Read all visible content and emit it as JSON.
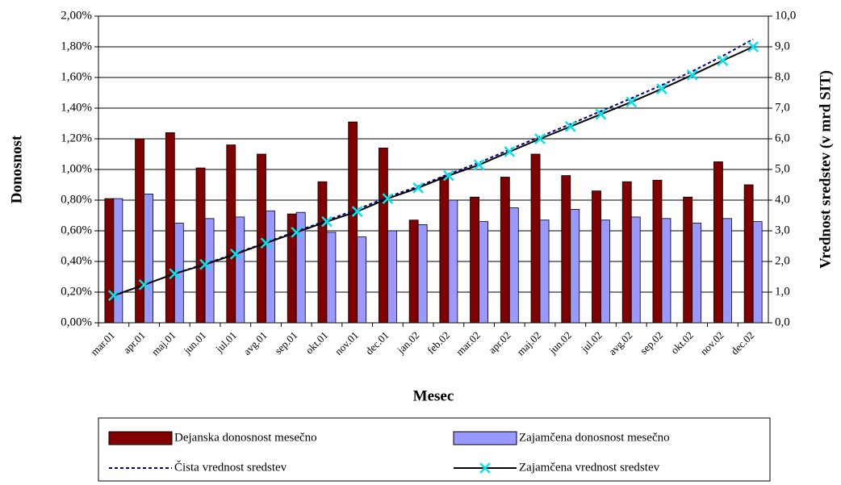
{
  "chart_data": {
    "type": "bar_line",
    "xlabel": "Mesec",
    "ylabel": "Donosnost",
    "y2label": "Vrednost sredstev (v mrd SIT)",
    "categories": [
      "mar.01",
      "apr.01",
      "maj.01",
      "jun.01",
      "jul.01",
      "avg.01",
      "sep.01",
      "okt.01",
      "nov.01",
      "dec.01",
      "jan.02",
      "feb.02",
      "mar.02",
      "apr.02",
      "maj.02",
      "jun.02",
      "jul.02",
      "avg.02",
      "sep.02",
      "okt.02",
      "nov.02",
      "dec.02"
    ],
    "series": [
      {
        "name": "Dejanska donosnost mesečno",
        "kind": "bar",
        "color": "#800000",
        "values": [
          0.81,
          1.2,
          1.24,
          1.01,
          1.16,
          1.1,
          0.71,
          0.92,
          1.31,
          1.14,
          0.67,
          0.95,
          0.82,
          0.95,
          1.1,
          0.96,
          0.86,
          0.92,
          0.93,
          0.82,
          1.05,
          0.9
        ]
      },
      {
        "name": "Zajamčena donosnost mesečno",
        "kind": "bar",
        "color": "#9999ff",
        "values": [
          0.81,
          0.84,
          0.65,
          0.68,
          0.69,
          0.73,
          0.72,
          0.59,
          0.56,
          0.6,
          0.64,
          0.8,
          0.66,
          0.75,
          0.67,
          0.74,
          0.67,
          0.69,
          0.68,
          0.65,
          0.68,
          0.66
        ]
      },
      {
        "name": "Čista vrednost sredstev",
        "kind": "line",
        "style": "dashed",
        "color": "#000080",
        "axis": "y2",
        "values": [
          0.88,
          1.24,
          1.6,
          1.92,
          2.26,
          2.62,
          2.98,
          3.34,
          3.7,
          4.1,
          4.45,
          4.85,
          5.22,
          5.65,
          6.07,
          6.48,
          6.9,
          7.32,
          7.75,
          8.2,
          8.7,
          9.25
        ]
      },
      {
        "name": "Zajamčena vrednost sredstev",
        "kind": "line",
        "style": "solid",
        "color": "#000000",
        "marker_color": "#00e5ee",
        "axis": "y2",
        "values": [
          0.89,
          1.24,
          1.6,
          1.9,
          2.24,
          2.6,
          2.95,
          3.3,
          3.63,
          4.05,
          4.4,
          4.8,
          5.15,
          5.58,
          6.0,
          6.4,
          6.8,
          7.2,
          7.63,
          8.08,
          8.55,
          9.0
        ]
      }
    ],
    "ylim": [
      0,
      2
    ],
    "yticks": [
      {
        "value": 0,
        "label": "0,00%"
      },
      {
        "value": 0.2,
        "label": "0,20%"
      },
      {
        "value": 0.4,
        "label": "0,40%"
      },
      {
        "value": 0.6,
        "label": "0,60%"
      },
      {
        "value": 0.8,
        "label": "0,80%"
      },
      {
        "value": 1.0,
        "label": "1,00%"
      },
      {
        "value": 1.2,
        "label": "1,20%"
      },
      {
        "value": 1.4,
        "label": "1,40%"
      },
      {
        "value": 1.6,
        "label": "1,60%"
      },
      {
        "value": 1.8,
        "label": "1,80%"
      },
      {
        "value": 2.0,
        "label": "2,00%"
      }
    ],
    "y2lim": [
      0,
      10
    ],
    "y2ticks": [
      {
        "value": 0,
        "label": "0,0"
      },
      {
        "value": 1,
        "label": "1,0"
      },
      {
        "value": 2,
        "label": "2,0"
      },
      {
        "value": 3,
        "label": "3,0"
      },
      {
        "value": 4,
        "label": "4,0"
      },
      {
        "value": 5,
        "label": "5,0"
      },
      {
        "value": 6,
        "label": "6,0"
      },
      {
        "value": 7,
        "label": "7,0"
      },
      {
        "value": 8,
        "label": "8,0"
      },
      {
        "value": 9,
        "label": "9,0"
      },
      {
        "value": 10,
        "label": "10,0"
      }
    ],
    "grid": true
  }
}
